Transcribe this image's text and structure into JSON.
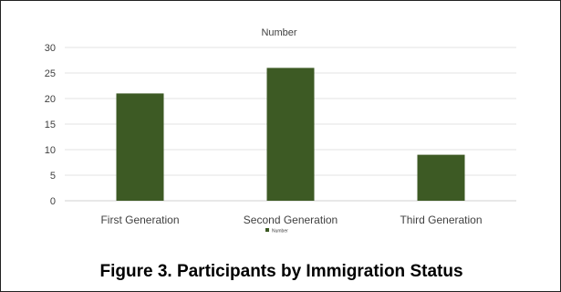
{
  "chart_data": {
    "type": "bar",
    "title": "Number",
    "categories": [
      "First Generation",
      "Second Generation",
      "Third Generation"
    ],
    "series": [
      {
        "name": "Number",
        "values": [
          21,
          26,
          9
        ]
      }
    ],
    "ylim": [
      0,
      30
    ],
    "yticks": [
      0,
      5,
      10,
      15,
      20,
      25,
      30
    ],
    "grid": true,
    "legend": "bottom",
    "bar_color": "#3d5a24"
  },
  "caption": "Figure 3. Participants by Immigration Status"
}
